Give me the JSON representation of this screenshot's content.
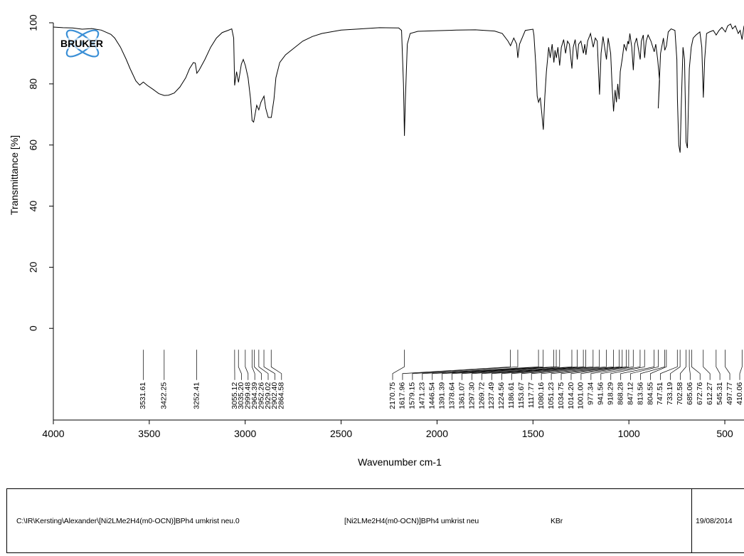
{
  "chart_data": {
    "type": "line",
    "title": "",
    "xlabel": "Wavenumber cm-1",
    "ylabel": "Transmittance [%]",
    "xlim": [
      4000,
      400
    ],
    "ylim": [
      -30,
      100
    ],
    "x_reversed": true,
    "x_ticks": [
      4000,
      3500,
      3000,
      2500,
      2000,
      1500,
      1000,
      500
    ],
    "y_ticks": [
      0,
      20,
      40,
      60,
      80,
      100
    ],
    "grid": false,
    "legend": "none",
    "line_color": "#000000",
    "series": [
      {
        "points": [
          [
            4000,
            98.6
          ],
          [
            3950,
            98.4
          ],
          [
            3900,
            98.3
          ],
          [
            3850,
            97.9
          ],
          [
            3800,
            98.1
          ],
          [
            3750,
            97.6
          ],
          [
            3700,
            96.2
          ],
          [
            3680,
            95.0
          ],
          [
            3650,
            92.0
          ],
          [
            3620,
            88.0
          ],
          [
            3600,
            85.0
          ],
          [
            3570,
            81.0
          ],
          [
            3550,
            79.6
          ],
          [
            3531,
            80.6
          ],
          [
            3510,
            79.5
          ],
          [
            3480,
            78.2
          ],
          [
            3450,
            76.8
          ],
          [
            3422,
            76.2
          ],
          [
            3400,
            76.3
          ],
          [
            3370,
            77.0
          ],
          [
            3340,
            79.0
          ],
          [
            3310,
            82.0
          ],
          [
            3290,
            85.0
          ],
          [
            3270,
            87.0
          ],
          [
            3260,
            86.8
          ],
          [
            3252,
            83.5
          ],
          [
            3240,
            84.5
          ],
          [
            3210,
            88.0
          ],
          [
            3180,
            92.0
          ],
          [
            3150,
            95.0
          ],
          [
            3120,
            96.8
          ],
          [
            3090,
            97.5
          ],
          [
            3070,
            98.0
          ],
          [
            3060,
            95.0
          ],
          [
            3055,
            79.5
          ],
          [
            3045,
            84.0
          ],
          [
            3035,
            80.5
          ],
          [
            3020,
            86.5
          ],
          [
            3010,
            88.0
          ],
          [
            2999,
            86.0
          ],
          [
            2985,
            82.0
          ],
          [
            2972,
            75.0
          ],
          [
            2964,
            68.0
          ],
          [
            2956,
            67.5
          ],
          [
            2950,
            69.5
          ],
          [
            2940,
            73.0
          ],
          [
            2929,
            71.5
          ],
          [
            2918,
            74.0
          ],
          [
            2902,
            76.0
          ],
          [
            2893,
            72.0
          ],
          [
            2880,
            69.0
          ],
          [
            2864,
            69.0
          ],
          [
            2850,
            75.0
          ],
          [
            2840,
            82.0
          ],
          [
            2820,
            87.0
          ],
          [
            2790,
            89.5
          ],
          [
            2750,
            91.5
          ],
          [
            2700,
            94.0
          ],
          [
            2650,
            95.5
          ],
          [
            2600,
            96.5
          ],
          [
            2500,
            97.6
          ],
          [
            2400,
            98.0
          ],
          [
            2300,
            98.4
          ],
          [
            2200,
            98.3
          ],
          [
            2185,
            97.5
          ],
          [
            2175,
            80.0
          ],
          [
            2170,
            63.0
          ],
          [
            2165,
            75.0
          ],
          [
            2155,
            93.0
          ],
          [
            2140,
            96.5
          ],
          [
            2100,
            97.2
          ],
          [
            2000,
            97.4
          ],
          [
            1900,
            97.6
          ],
          [
            1800,
            97.7
          ],
          [
            1700,
            97.3
          ],
          [
            1660,
            96.5
          ],
          [
            1630,
            94.0
          ],
          [
            1617,
            92.5
          ],
          [
            1600,
            95.0
          ],
          [
            1585,
            93.0
          ],
          [
            1579,
            88.5
          ],
          [
            1570,
            93.0
          ],
          [
            1550,
            96.0
          ],
          [
            1540,
            97.5
          ],
          [
            1500,
            97.9
          ],
          [
            1495,
            96.0
          ],
          [
            1485,
            86.0
          ],
          [
            1478,
            76.0
          ],
          [
            1471,
            74.0
          ],
          [
            1462,
            75.5
          ],
          [
            1455,
            71.0
          ],
          [
            1446,
            65.0
          ],
          [
            1438,
            76.0
          ],
          [
            1430,
            84.0
          ],
          [
            1418,
            92.0
          ],
          [
            1410,
            88.5
          ],
          [
            1400,
            93.0
          ],
          [
            1391,
            87.0
          ],
          [
            1385,
            91.0
          ],
          [
            1378,
            88.5
          ],
          [
            1370,
            92.0
          ],
          [
            1361,
            86.0
          ],
          [
            1352,
            92.0
          ],
          [
            1340,
            94.5
          ],
          [
            1330,
            90.0
          ],
          [
            1320,
            94.0
          ],
          [
            1310,
            93.0
          ],
          [
            1297,
            85.0
          ],
          [
            1290,
            92.0
          ],
          [
            1280,
            94.5
          ],
          [
            1269,
            88.0
          ],
          [
            1262,
            93.0
          ],
          [
            1250,
            94.0
          ],
          [
            1237,
            90.0
          ],
          [
            1230,
            93.0
          ],
          [
            1224,
            89.5
          ],
          [
            1215,
            94.0
          ],
          [
            1200,
            96.5
          ],
          [
            1186,
            92.0
          ],
          [
            1175,
            95.0
          ],
          [
            1165,
            94.0
          ],
          [
            1153,
            76.5
          ],
          [
            1145,
            90.0
          ],
          [
            1135,
            95.5
          ],
          [
            1117,
            88.0
          ],
          [
            1108,
            95.0
          ],
          [
            1095,
            90.0
          ],
          [
            1088,
            80.0
          ],
          [
            1080,
            71.0
          ],
          [
            1072,
            78.0
          ],
          [
            1065,
            74.0
          ],
          [
            1058,
            80.0
          ],
          [
            1051,
            75.0
          ],
          [
            1045,
            84.0
          ],
          [
            1034,
            88.5
          ],
          [
            1025,
            93.0
          ],
          [
            1014,
            91.0
          ],
          [
            1005,
            94.0
          ],
          [
            1001,
            93.0
          ],
          [
            995,
            96.5
          ],
          [
            985,
            92.0
          ],
          [
            977,
            84.5
          ],
          [
            970,
            93.0
          ],
          [
            960,
            95.0
          ],
          [
            941,
            88.0
          ],
          [
            935,
            94.0
          ],
          [
            925,
            96.0
          ],
          [
            918,
            88.5
          ],
          [
            910,
            94.0
          ],
          [
            900,
            96.0
          ],
          [
            885,
            94.0
          ],
          [
            868,
            90.5
          ],
          [
            860,
            93.0
          ],
          [
            850,
            88.0
          ],
          [
            840,
            81.0
          ],
          [
            847,
            72.0
          ],
          [
            835,
            90.0
          ],
          [
            820,
            95.0
          ],
          [
            813,
            91.0
          ],
          [
            804,
            92.5
          ],
          [
            795,
            97.0
          ],
          [
            780,
            98.0
          ],
          [
            760,
            97.5
          ],
          [
            750,
            88.0
          ],
          [
            747,
            75.0
          ],
          [
            740,
            60.0
          ],
          [
            733,
            57.5
          ],
          [
            726,
            75.0
          ],
          [
            718,
            92.0
          ],
          [
            710,
            88.0
          ],
          [
            702,
            61.0
          ],
          [
            695,
            59.0
          ],
          [
            685,
            85.0
          ],
          [
            675,
            92.0
          ],
          [
            670,
            93.5
          ],
          [
            665,
            95.0
          ],
          [
            650,
            96.0
          ],
          [
            630,
            97.0
          ],
          [
            620,
            92.0
          ],
          [
            612,
            75.5
          ],
          [
            605,
            88.0
          ],
          [
            595,
            96.5
          ],
          [
            580,
            97.0
          ],
          [
            560,
            97.5
          ],
          [
            545,
            96.0
          ],
          [
            530,
            97.5
          ],
          [
            515,
            98.5
          ],
          [
            497,
            97.0
          ],
          [
            485,
            99.0
          ],
          [
            470,
            99.6
          ],
          [
            460,
            98.0
          ],
          [
            445,
            99.0
          ],
          [
            430,
            96.5
          ],
          [
            420,
            97.5
          ],
          [
            410,
            94.5
          ],
          [
            400,
            99.0
          ]
        ]
      }
    ],
    "peak_labels_left": [
      "3531.61",
      "3422.25",
      "3252.41"
    ],
    "peak_labels_group1": [
      "3055.12",
      "3035.20",
      "2999.48",
      "2964.39",
      "2952.26",
      "2929.02",
      "2902.40",
      "2864.58"
    ],
    "peak_labels_group2": [
      "2170.75",
      "1617.96",
      "1579.15",
      "1471.23",
      "1446.54",
      "1391.39",
      "1378.64",
      "1361.07",
      "1297.30",
      "1269.72",
      "1237.49",
      "1224.56",
      "1186.61",
      "1153.67",
      "1117.77",
      "1080.16",
      "1051.23",
      "1034.75",
      "1014.20",
      "1001.00",
      "977.34",
      "941.56",
      "918.29",
      "868.28",
      "847.12",
      "813.56",
      "804.55",
      "747.51",
      "733.19",
      "702.58",
      "685.06",
      "672.76",
      "612.27",
      "545.31",
      "497.77",
      "410.06"
    ]
  },
  "logo": {
    "text": "BRUKER"
  },
  "footer": {
    "file_path": "C:\\IR\\Kersting\\Alexander\\[Ni2LMe2H4(m0-OCN)]BPh4 umkrist neu.0",
    "sample_name": "[Ni2LMe2H4(m0-OCN)]BPh4 umkrist neu",
    "matrix": "KBr",
    "date": "19/08/2014"
  }
}
